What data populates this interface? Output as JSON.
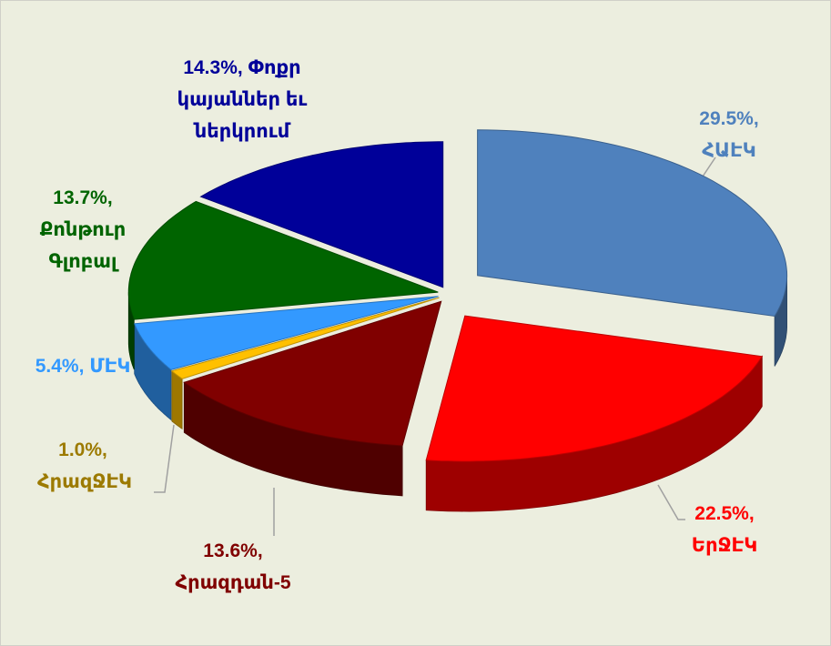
{
  "chart_data": {
    "type": "pie3d",
    "categories": [
      "ՀԱԷԿ",
      "ԵրՋԷԿ",
      "Հրազդան-5",
      "ՀրազՋԷԿ",
      "ՄԷԿ",
      "Քոնթուր Գլոբալ",
      "Փոքր կայաններ եւ ներկրում"
    ],
    "values": [
      29.5,
      22.5,
      13.6,
      1.0,
      5.4,
      13.7,
      14.3
    ],
    "value_labels": [
      "29.5%,",
      "22.5%,",
      "13.6%,",
      "1.0%,",
      "5.4%,",
      "13.7%,",
      "14.3%,"
    ],
    "colors": [
      "#4f81bd",
      "#ff0000",
      "#800000",
      "#ffc000",
      "#3399ff",
      "#006400",
      "#000099"
    ],
    "label_colors": [
      "#4f81bd",
      "#ff0000",
      "#800000",
      "#9c7a00",
      "#3399ff",
      "#006400",
      "#000099"
    ]
  }
}
